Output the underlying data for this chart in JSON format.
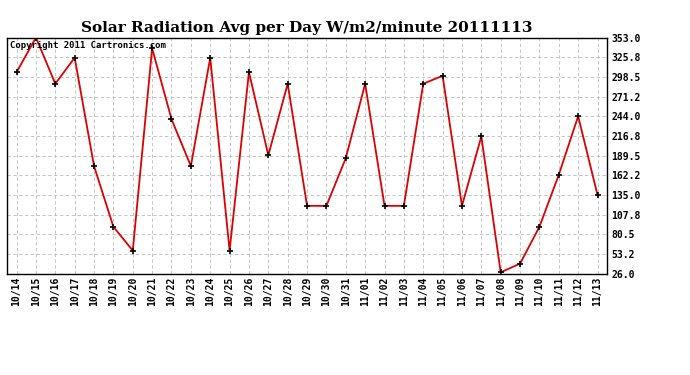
{
  "title": "Solar Radiation Avg per Day W/m2/minute 20111113",
  "copyright": "Copyright 2011 Cartronics.com",
  "x_labels": [
    "10/14",
    "10/15",
    "10/16",
    "10/17",
    "10/18",
    "10/19",
    "10/20",
    "10/21",
    "10/22",
    "10/23",
    "10/24",
    "10/25",
    "10/26",
    "10/27",
    "10/28",
    "10/29",
    "10/30",
    "10/31",
    "11/01",
    "11/02",
    "11/03",
    "11/04",
    "11/05",
    "11/06",
    "11/07",
    "11/08",
    "11/09",
    "11/10",
    "11/11",
    "11/12",
    "11/13"
  ],
  "y_values": [
    305,
    353,
    289,
    325,
    175,
    91,
    58,
    338,
    240,
    175,
    325,
    58,
    305,
    190,
    289,
    120,
    120,
    186,
    289,
    120,
    120,
    289,
    300,
    120,
    216,
    28,
    40,
    91,
    163,
    244,
    135
  ],
  "y_min": 26.0,
  "y_max": 353.0,
  "y_ticks": [
    26.0,
    53.2,
    80.5,
    107.8,
    135.0,
    162.2,
    189.5,
    216.8,
    244.0,
    271.2,
    298.5,
    325.8,
    353.0
  ],
  "line_color": "#dd0000",
  "marker_color": "#000000",
  "bg_color": "#ffffff",
  "grid_color": "#bbbbbb",
  "title_fontsize": 11,
  "tick_fontsize": 7,
  "copyright_fontsize": 6.5
}
